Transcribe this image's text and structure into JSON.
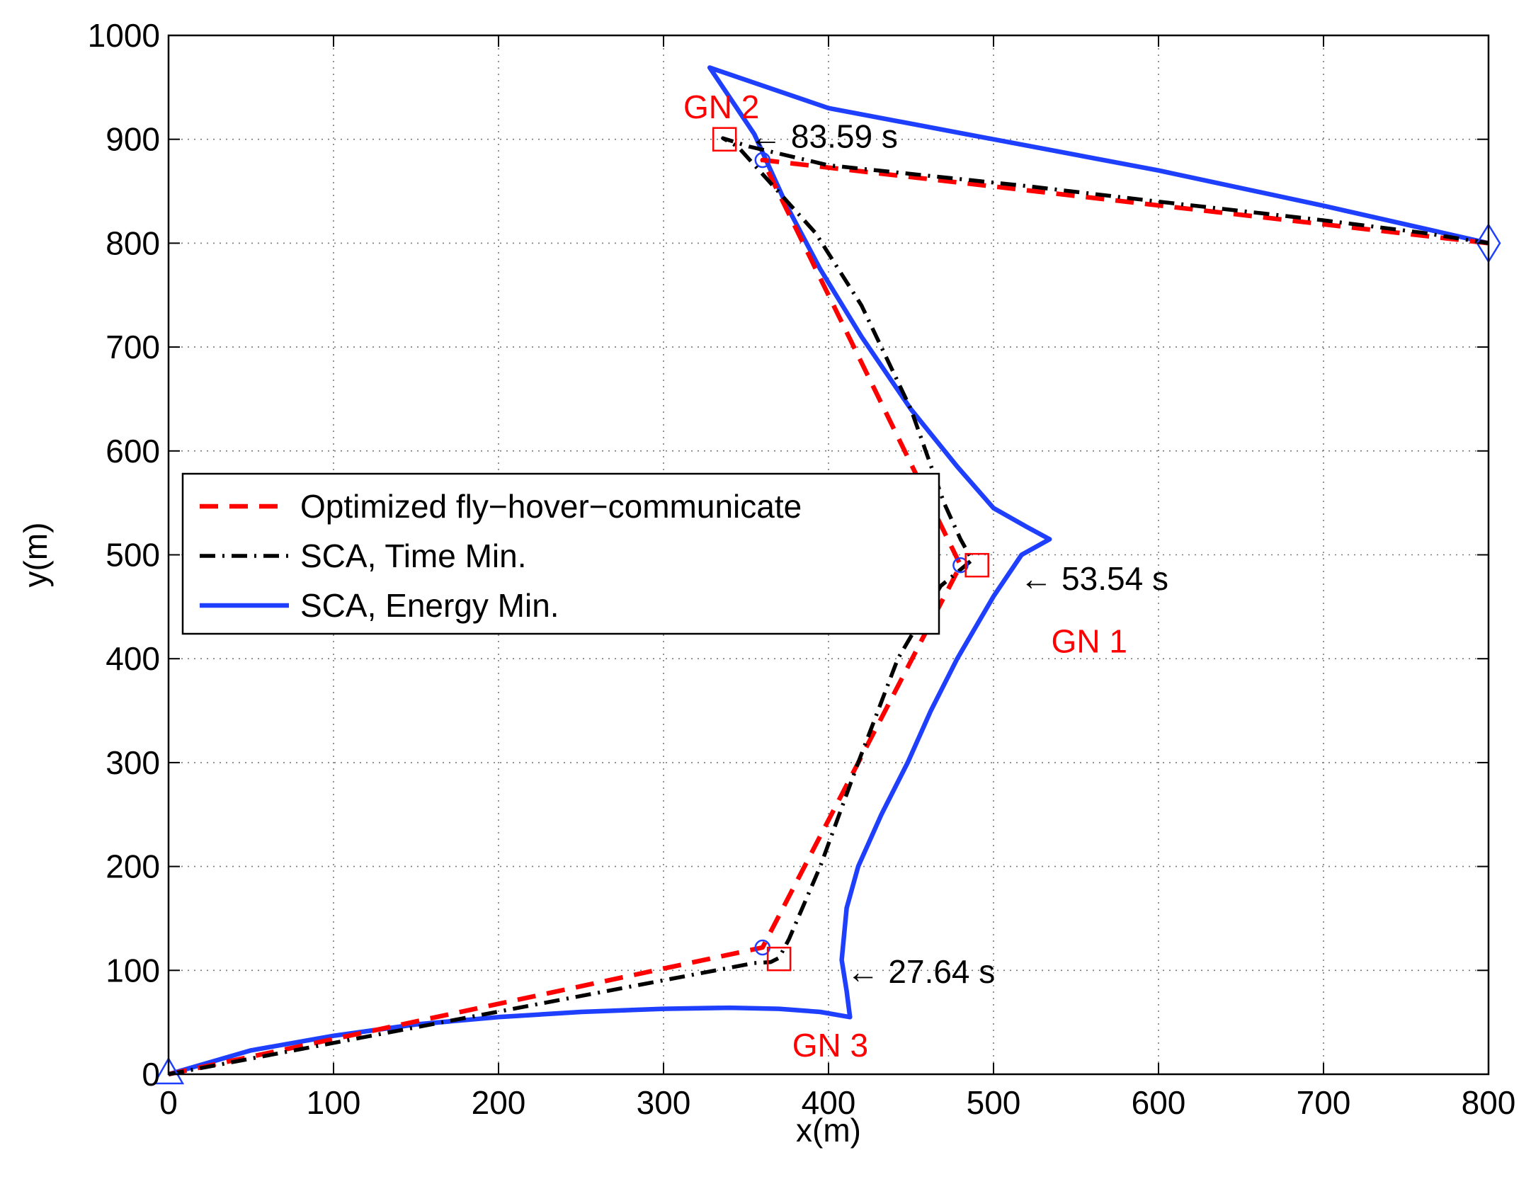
{
  "chart_data": {
    "type": "line",
    "title": "",
    "xlabel": "x(m)",
    "ylabel": "y(m)",
    "xlim": [
      0,
      800
    ],
    "ylim": [
      0,
      1000
    ],
    "xticks": [
      0,
      100,
      200,
      300,
      400,
      500,
      600,
      700,
      800
    ],
    "yticks": [
      0,
      100,
      200,
      300,
      400,
      500,
      600,
      700,
      800,
      900,
      1000
    ],
    "grid": true,
    "legend_position": "center-left",
    "series": [
      {
        "name": "Optimized fly−hover−communicate",
        "color": "#ff0000",
        "style": "dashed",
        "points": [
          [
            0,
            0
          ],
          [
            360,
            122
          ],
          [
            480,
            490
          ],
          [
            360,
            880
          ],
          [
            800,
            800
          ]
        ]
      },
      {
        "name": "SCA, Time Min.",
        "color": "#000000",
        "style": "dashdot",
        "points": [
          [
            0,
            0
          ],
          [
            355,
            107
          ],
          [
            365,
            108
          ],
          [
            370,
            112
          ],
          [
            376,
            130
          ],
          [
            395,
            200
          ],
          [
            418,
            300
          ],
          [
            442,
            400
          ],
          [
            468,
            470
          ],
          [
            487,
            495
          ],
          [
            480,
            515
          ],
          [
            470,
            550
          ],
          [
            450,
            640
          ],
          [
            420,
            740
          ],
          [
            392,
            810
          ],
          [
            345,
            893
          ],
          [
            336,
            901
          ],
          [
            352,
            893
          ],
          [
            400,
            875
          ],
          [
            520,
            855
          ],
          [
            600,
            840
          ],
          [
            700,
            822
          ],
          [
            760,
            810
          ],
          [
            800,
            800
          ]
        ]
      },
      {
        "name": "SCA, Energy Min.",
        "color": "#1f3fff",
        "style": "solid",
        "points": [
          [
            0,
            0
          ],
          [
            50,
            23
          ],
          [
            100,
            37
          ],
          [
            150,
            48
          ],
          [
            200,
            55
          ],
          [
            250,
            60
          ],
          [
            300,
            63
          ],
          [
            340,
            64
          ],
          [
            370,
            63
          ],
          [
            395,
            60
          ],
          [
            413,
            55
          ],
          [
            411,
            80
          ],
          [
            408,
            110
          ],
          [
            411,
            160
          ],
          [
            418,
            200
          ],
          [
            432,
            250
          ],
          [
            448,
            300
          ],
          [
            462,
            350
          ],
          [
            478,
            400
          ],
          [
            500,
            460
          ],
          [
            517,
            500
          ],
          [
            534,
            515
          ],
          [
            520,
            527
          ],
          [
            500,
            545
          ],
          [
            478,
            585
          ],
          [
            450,
            640
          ],
          [
            420,
            710
          ],
          [
            395,
            775
          ],
          [
            375,
            835
          ],
          [
            355,
            905
          ],
          [
            328,
            969
          ],
          [
            400,
            930
          ],
          [
            500,
            900
          ],
          [
            600,
            870
          ],
          [
            700,
            836
          ],
          [
            800,
            800
          ]
        ]
      }
    ],
    "hover_points": [
      {
        "label": "GN 1",
        "x": 480,
        "y": 490
      },
      {
        "label": "GN 2",
        "x": 360,
        "y": 880
      },
      {
        "label": "GN 3",
        "x": 360,
        "y": 122
      }
    ],
    "ground_nodes": [
      {
        "label": "GN 1",
        "x": 490,
        "y": 490
      },
      {
        "label": "GN 2",
        "x": 337,
        "y": 900
      },
      {
        "label": "GN 3",
        "x": 370,
        "y": 111
      }
    ],
    "node_labels": [
      {
        "text": "GN 1",
        "x": 535,
        "y": 417
      },
      {
        "text": "GN 2",
        "x": 312,
        "y": 931
      },
      {
        "text": "GN 3",
        "x": 378,
        "y": 28
      }
    ],
    "time_annotations": [
      {
        "text": "← 83.59 s",
        "x": 352,
        "y": 903
      },
      {
        "text": "← 53.54 s",
        "x": 516,
        "y": 477
      },
      {
        "text": "← 27.64 s",
        "x": 411,
        "y": 99
      }
    ],
    "start_marker": {
      "shape": "triangle",
      "x": 0,
      "y": 0,
      "color": "#1f3fff"
    },
    "end_marker": {
      "shape": "diamond",
      "x": 800,
      "y": 800,
      "color": "#1f3fff"
    }
  }
}
